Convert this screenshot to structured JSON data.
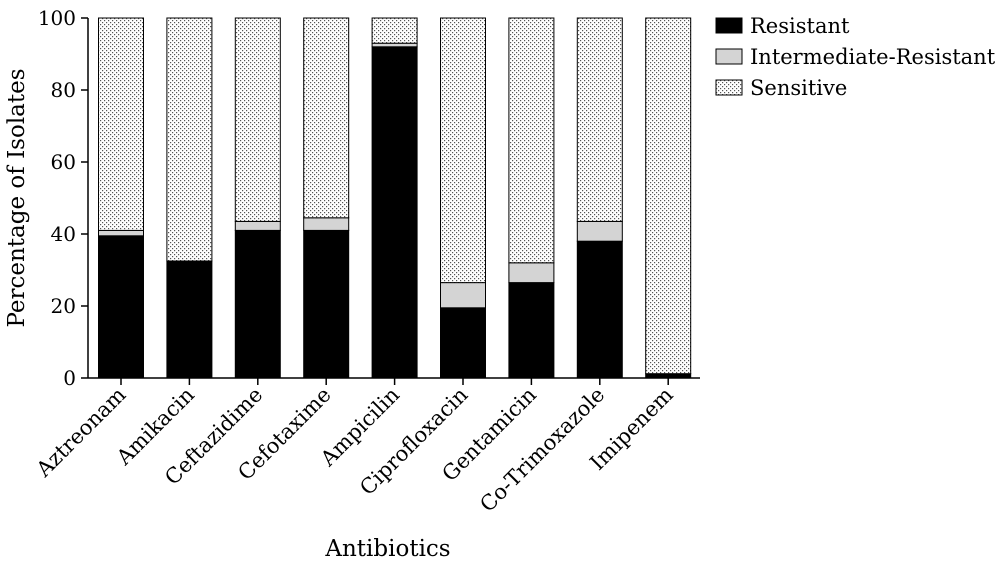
{
  "chart_data": {
    "type": "bar",
    "stacked": true,
    "title": "",
    "xlabel": "Antibiotics",
    "ylabel": "Percentage of Isolates",
    "ylim": [
      0,
      100
    ],
    "yticks": [
      "0",
      "20",
      "40",
      "60",
      "80",
      "100"
    ],
    "grid": false,
    "legend_position": "top-right",
    "categories": [
      "Aztreonam",
      "Amikacin",
      "Ceftazidime",
      "Cefotaxime",
      "Ampicilin",
      "Ciprofloxacin",
      "Gentamicin",
      "Co-Trimoxazole",
      "Imipenem"
    ],
    "series": [
      {
        "name": "Resistant",
        "color": "#000000",
        "pattern": "solid",
        "values": [
          39.5,
          32.5,
          41,
          41,
          92,
          19.5,
          26.5,
          38,
          1.2
        ]
      },
      {
        "name": "Intermediate-Resistant",
        "color": "#d4d4d4",
        "pattern": "solid",
        "values": [
          1.5,
          0,
          2.5,
          3.5,
          1,
          7,
          5.5,
          5.5,
          0
        ]
      },
      {
        "name": "Sensitive",
        "color": "#ffffff",
        "pattern": "dots",
        "values": [
          59,
          67.5,
          56.5,
          55.5,
          7,
          73.5,
          68,
          56.5,
          98.8
        ]
      }
    ]
  }
}
